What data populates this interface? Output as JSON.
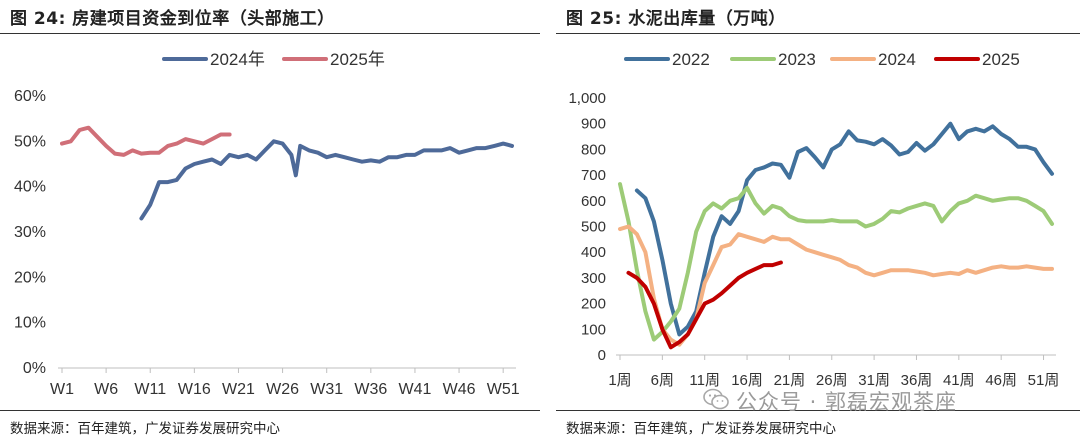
{
  "watermark": {
    "text": "公众号 · 郭磊宏观茶座",
    "icon": "wechat-icon"
  },
  "charts": {
    "left": {
      "title": "图 24:  房建项目资金到位率（头部施工）",
      "source": "数据来源：百年建筑，广发证券发展研究中心"
    },
    "right": {
      "title": "图 25:  水泥出库量（万吨）",
      "source": "数据来源：百年建筑，广发证券发展研究中心"
    }
  },
  "chart_data": [
    {
      "type": "line",
      "title": "图 24:  房建项目资金到位率（头部施工）",
      "xlabel": "",
      "ylabel": "",
      "x_range": [
        1,
        52
      ],
      "ylim": [
        0,
        60
      ],
      "y_ticks": [
        0,
        10,
        20,
        30,
        40,
        50,
        60
      ],
      "y_tick_labels": [
        "0%",
        "10%",
        "20%",
        "30%",
        "40%",
        "50%",
        "60%"
      ],
      "x_ticks": [
        1,
        6,
        11,
        16,
        21,
        26,
        31,
        36,
        41,
        46,
        51
      ],
      "x_tick_labels": [
        "W1",
        "W6",
        "W11",
        "W16",
        "W21",
        "W26",
        "W31",
        "W36",
        "W41",
        "W46",
        "W51"
      ],
      "legend_position": "top-center",
      "grid": false,
      "series": [
        {
          "name": "2024年",
          "color": "#4e6a99",
          "x": [
            10,
            11,
            12,
            13,
            14,
            15,
            16,
            17,
            18,
            19,
            20,
            21,
            22,
            23,
            24,
            25,
            26,
            27,
            27.5,
            28,
            29,
            30,
            31,
            32,
            33,
            34,
            35,
            36,
            37,
            38,
            39,
            40,
            41,
            42,
            43,
            44,
            45,
            46,
            47,
            48,
            49,
            50,
            51,
            52
          ],
          "values": [
            33,
            36,
            41,
            41,
            41.5,
            44,
            45,
            45.5,
            46,
            45,
            47,
            46.5,
            47,
            46,
            48,
            50,
            49.5,
            47,
            42.5,
            49,
            48,
            47.5,
            46.5,
            47,
            46.5,
            46,
            45.5,
            45.8,
            45.5,
            46.5,
            46.5,
            47,
            47,
            48,
            48,
            48,
            48.5,
            47.5,
            48,
            48.5,
            48.5,
            49,
            49.5,
            49
          ]
        },
        {
          "name": "2025年",
          "color": "#d06f78",
          "x": [
            1,
            2,
            3,
            4,
            5,
            6,
            7,
            8,
            9,
            10,
            11,
            12,
            13,
            14,
            15,
            16,
            17,
            18,
            19,
            20
          ],
          "values": [
            49.5,
            50,
            52.5,
            53,
            51,
            49,
            47.3,
            47,
            48,
            47.3,
            47.5,
            47.5,
            49,
            49.5,
            50.5,
            50,
            49.5,
            50.5,
            51.5,
            51.5
          ]
        }
      ]
    },
    {
      "type": "line",
      "title": "水泥出库量（万吨）",
      "unit": "万吨",
      "xlabel": "",
      "ylabel": "",
      "x_range": [
        1,
        52
      ],
      "ylim": [
        0,
        1000
      ],
      "y_ticks": [
        0,
        100,
        200,
        300,
        400,
        500,
        600,
        700,
        800,
        900,
        1000
      ],
      "y_tick_labels": [
        "0",
        "100",
        "200",
        "300",
        "400",
        "500",
        "600",
        "700",
        "800",
        "900",
        "1,000"
      ],
      "x_ticks": [
        1,
        6,
        11,
        16,
        21,
        26,
        31,
        36,
        41,
        46,
        51
      ],
      "x_tick_labels": [
        "1周",
        "6周",
        "11周",
        "16周",
        "21周",
        "26周",
        "31周",
        "36周",
        "41周",
        "46周",
        "51周"
      ],
      "legend_position": "top",
      "grid": false,
      "series": [
        {
          "name": "2022",
          "color": "#41719c",
          "x": [
            3,
            4,
            5,
            6,
            7,
            8,
            9,
            10,
            11,
            12,
            13,
            14,
            15,
            16,
            17,
            18,
            19,
            20,
            21,
            22,
            23,
            24,
            25,
            26,
            27,
            28,
            29,
            30,
            31,
            32,
            33,
            34,
            35,
            36,
            37,
            38,
            39,
            40,
            41,
            42,
            43,
            44,
            45,
            46,
            47,
            48,
            49,
            50,
            51,
            52
          ],
          "values": [
            640,
            610,
            520,
            370,
            200,
            80,
            110,
            170,
            320,
            460,
            540,
            510,
            560,
            680,
            720,
            730,
            745,
            740,
            690,
            790,
            805,
            770,
            730,
            800,
            820,
            870,
            835,
            830,
            820,
            840,
            815,
            780,
            790,
            825,
            795,
            820,
            860,
            900,
            840,
            870,
            880,
            870,
            890,
            860,
            840,
            810,
            810,
            800,
            750,
            705
          ]
        },
        {
          "name": "2023",
          "color": "#9dcb77",
          "x": [
            1,
            2,
            3,
            4,
            5,
            6,
            7,
            8,
            9,
            10,
            11,
            12,
            13,
            14,
            15,
            16,
            17,
            18,
            19,
            20,
            21,
            22,
            23,
            24,
            25,
            26,
            27,
            28,
            29,
            30,
            31,
            32,
            33,
            34,
            35,
            36,
            37,
            38,
            39,
            40,
            41,
            42,
            43,
            44,
            45,
            46,
            47,
            48,
            49,
            50,
            51,
            52
          ],
          "values": [
            665,
            520,
            330,
            170,
            60,
            90,
            130,
            180,
            320,
            480,
            560,
            590,
            570,
            600,
            610,
            650,
            590,
            550,
            580,
            570,
            540,
            525,
            520,
            520,
            520,
            525,
            520,
            520,
            520,
            500,
            510,
            530,
            560,
            555,
            570,
            580,
            590,
            580,
            520,
            560,
            590,
            600,
            620,
            610,
            600,
            605,
            610,
            610,
            600,
            580,
            560,
            510
          ]
        },
        {
          "name": "2024",
          "color": "#f4b183",
          "x": [
            1,
            2,
            3,
            4,
            5,
            6,
            7,
            8,
            9,
            10,
            11,
            12,
            13,
            14,
            15,
            16,
            17,
            18,
            19,
            20,
            21,
            22,
            23,
            24,
            25,
            26,
            27,
            28,
            29,
            30,
            31,
            32,
            33,
            34,
            35,
            36,
            37,
            38,
            39,
            40,
            41,
            42,
            43,
            44,
            45,
            46,
            47,
            48,
            49,
            50,
            51,
            52
          ],
          "values": [
            490,
            500,
            470,
            400,
            220,
            100,
            60,
            40,
            80,
            140,
            280,
            350,
            420,
            430,
            470,
            460,
            450,
            440,
            460,
            450,
            450,
            430,
            410,
            400,
            390,
            380,
            370,
            350,
            340,
            320,
            310,
            320,
            330,
            330,
            330,
            325,
            320,
            310,
            315,
            320,
            315,
            330,
            320,
            330,
            340,
            345,
            340,
            340,
            345,
            340,
            335,
            335
          ]
        },
        {
          "name": "2025",
          "color": "#c00000",
          "x": [
            2,
            3,
            4,
            5,
            6,
            7,
            8,
            9,
            10,
            11,
            12,
            13,
            14,
            15,
            16,
            17,
            18,
            19,
            20
          ],
          "values": [
            320,
            300,
            265,
            200,
            100,
            30,
            50,
            80,
            140,
            200,
            215,
            240,
            270,
            300,
            320,
            335,
            350,
            350,
            360
          ]
        }
      ]
    }
  ]
}
